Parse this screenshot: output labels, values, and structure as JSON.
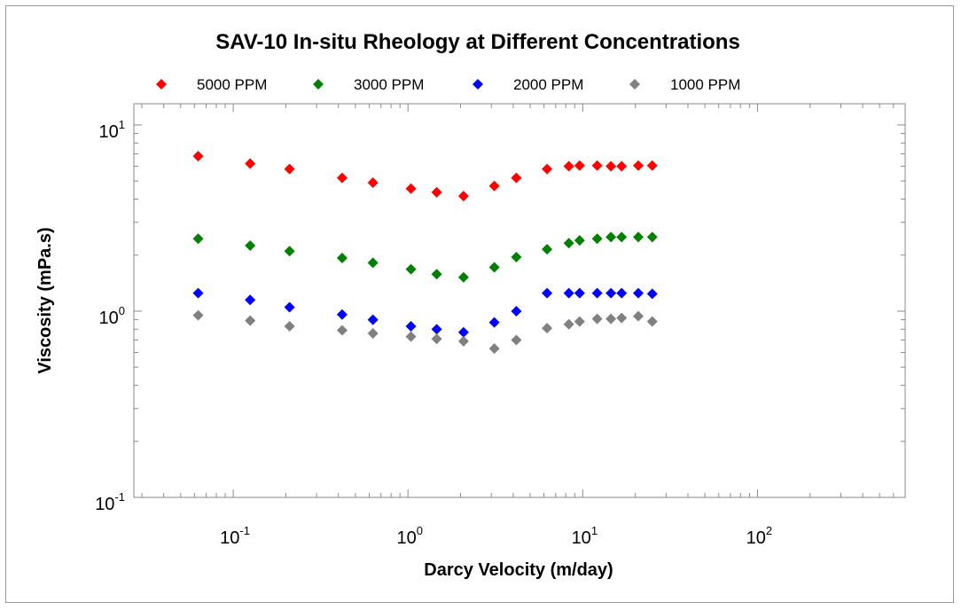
{
  "chart_data": {
    "type": "scatter",
    "title": "SAV-10 In-situ Rheology at Different Concentrations",
    "xlabel": "Darcy Velocity (m/day)",
    "ylabel": "Viscosity (mPa.s)",
    "xscale": "log",
    "yscale": "log",
    "xlim": [
      0.027,
      700
    ],
    "ylim": [
      0.1,
      13
    ],
    "x_ticks": [
      {
        "base": "10",
        "exp": "-1",
        "value": 0.1
      },
      {
        "base": "10",
        "exp": "0",
        "value": 1
      },
      {
        "base": "10",
        "exp": "1",
        "value": 10
      },
      {
        "base": "10",
        "exp": "2",
        "value": 100
      }
    ],
    "y_ticks": [
      {
        "base": "10",
        "exp": "1",
        "value": 10
      },
      {
        "base": "10",
        "exp": "0",
        "value": 1
      },
      {
        "base": "10",
        "exp": "-1",
        "value": 0.1
      }
    ],
    "legend_position": "top",
    "marker": "diamond",
    "x": [
      0.063,
      0.125,
      0.21,
      0.42,
      0.63,
      1.04,
      1.46,
      2.08,
      3.12,
      4.17,
      6.25,
      8.33,
      9.6,
      12.1,
      14.5,
      16.7,
      20.8,
      25.0
    ],
    "series": [
      {
        "name": "5000 PPM",
        "color": "#ff0000",
        "values": [
          6.8,
          6.2,
          5.8,
          5.2,
          4.9,
          4.55,
          4.35,
          4.15,
          4.7,
          5.2,
          5.8,
          6.0,
          6.05,
          6.05,
          6.0,
          6.0,
          6.05,
          6.05
        ]
      },
      {
        "name": "3000 PPM",
        "color": "#008000",
        "values": [
          2.45,
          2.25,
          2.1,
          1.93,
          1.82,
          1.68,
          1.58,
          1.52,
          1.72,
          1.95,
          2.15,
          2.32,
          2.4,
          2.45,
          2.5,
          2.5,
          2.5,
          2.5
        ]
      },
      {
        "name": "2000 PPM",
        "color": "#0000ff",
        "values": [
          1.25,
          1.15,
          1.05,
          0.96,
          0.9,
          0.83,
          0.8,
          0.77,
          0.87,
          1.0,
          1.25,
          1.25,
          1.25,
          1.25,
          1.25,
          1.25,
          1.25,
          1.24
        ]
      },
      {
        "name": "1000 PPM",
        "color": "#808080",
        "values": [
          0.95,
          0.89,
          0.83,
          0.79,
          0.76,
          0.73,
          0.71,
          0.69,
          0.63,
          0.7,
          0.81,
          0.85,
          0.88,
          0.91,
          0.91,
          0.92,
          0.94,
          0.88
        ]
      }
    ]
  }
}
